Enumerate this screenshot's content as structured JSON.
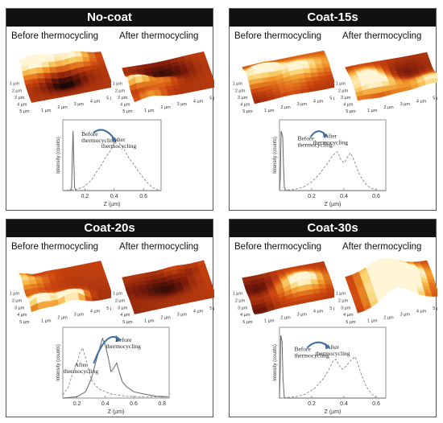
{
  "panels": [
    {
      "title": "No-coat",
      "before_label": "Before thermocycling",
      "after_label": "After thermocycling"
    },
    {
      "title": "Coat-15s",
      "before_label": "Before thermocycling",
      "after_label": "After thermocycling"
    },
    {
      "title": "Coat-20s",
      "before_label": "Before thermocycling",
      "after_label": "After thermocycling"
    },
    {
      "title": "Coat-30s",
      "before_label": "Before thermocycling",
      "after_label": "After thermocycling"
    }
  ],
  "surface_axis_labels": [
    "1 µm",
    "2 µm",
    "3 µm",
    "4 µm",
    "5 µm"
  ],
  "colors": {
    "before_line": "#666666",
    "after_line": "#888888",
    "arrow": "#3d6fa5",
    "header_bg": "#111111"
  },
  "chart_data": [
    {
      "type": "line",
      "panel": "No-coat",
      "xlabel": "Z (µm)",
      "ylabel": "Intensity (counts)",
      "xlim": [
        0.05,
        0.72
      ],
      "ylim": [
        0,
        1
      ],
      "xticks": [
        0.2,
        0.4,
        0.6
      ],
      "annotations": [
        "Before thermocycling",
        "After thermocycling"
      ],
      "series": [
        {
          "name": "Before thermocycling",
          "style": "solid",
          "x": [
            0.05,
            0.1,
            0.11,
            0.115,
            0.12,
            0.125,
            0.13,
            0.14,
            0.2,
            0.72
          ],
          "y": [
            0,
            0,
            0.05,
            0.55,
            0.95,
            0.45,
            0.05,
            0,
            0,
            0
          ]
        },
        {
          "name": "After thermocycling",
          "style": "dashed",
          "x": [
            0.05,
            0.15,
            0.2,
            0.25,
            0.28,
            0.3,
            0.33,
            0.35,
            0.38,
            0.4,
            0.42,
            0.44,
            0.46,
            0.48,
            0.5,
            0.52,
            0.55,
            0.58,
            0.62,
            0.66,
            0.7
          ],
          "y": [
            0,
            0.02,
            0.07,
            0.18,
            0.3,
            0.36,
            0.48,
            0.56,
            0.65,
            0.76,
            0.82,
            0.74,
            0.7,
            0.6,
            0.52,
            0.46,
            0.36,
            0.26,
            0.14,
            0.05,
            0.01
          ]
        }
      ]
    },
    {
      "type": "line",
      "panel": "Coat-15s",
      "xlabel": "Z (µm)",
      "ylabel": "Intensity (counts)",
      "xlim": [
        0.0,
        0.66
      ],
      "ylim": [
        0,
        1
      ],
      "xticks": [
        0.2,
        0.4,
        0.6
      ],
      "annotations": [
        "Before thermocycling",
        "After thermocycling"
      ],
      "series": [
        {
          "name": "Before thermocycling",
          "style": "solid",
          "x": [
            0.0,
            0.005,
            0.01,
            0.015,
            0.02,
            0.025,
            0.03,
            0.04,
            0.66
          ],
          "y": [
            0,
            0.2,
            0.95,
            0.9,
            0.85,
            0.4,
            0.05,
            0,
            0
          ]
        },
        {
          "name": "After thermocycling",
          "style": "dashed",
          "x": [
            0.0,
            0.1,
            0.15,
            0.2,
            0.24,
            0.27,
            0.3,
            0.33,
            0.36,
            0.38,
            0.4,
            0.42,
            0.44,
            0.46,
            0.48,
            0.5,
            0.53,
            0.56,
            0.6
          ],
          "y": [
            0,
            0.02,
            0.06,
            0.14,
            0.24,
            0.34,
            0.44,
            0.56,
            0.62,
            0.5,
            0.44,
            0.52,
            0.6,
            0.5,
            0.36,
            0.24,
            0.12,
            0.05,
            0.01
          ]
        }
      ]
    },
    {
      "type": "line",
      "panel": "Coat-20s",
      "xlabel": "Z (µm)",
      "ylabel": "Intensity (counts)",
      "xlim": [
        0.1,
        0.85
      ],
      "ylim": [
        0,
        1
      ],
      "xticks": [
        0.2,
        0.4,
        0.6,
        0.8
      ],
      "annotations": [
        "After thermocycling",
        "Before thermocycling"
      ],
      "series": [
        {
          "name": "After thermocycling",
          "style": "dashed",
          "x": [
            0.1,
            0.14,
            0.17,
            0.2,
            0.22,
            0.24,
            0.26,
            0.28,
            0.3,
            0.33,
            0.36,
            0.4,
            0.45,
            0.55,
            0.65,
            0.75,
            0.85
          ],
          "y": [
            0.05,
            0.18,
            0.4,
            0.55,
            0.72,
            0.8,
            0.64,
            0.46,
            0.3,
            0.2,
            0.14,
            0.1,
            0.06,
            0.03,
            0.02,
            0.02,
            0.02
          ]
        },
        {
          "name": "Before thermocycling",
          "style": "solid",
          "x": [
            0.1,
            0.2,
            0.26,
            0.3,
            0.33,
            0.36,
            0.38,
            0.4,
            0.42,
            0.44,
            0.46,
            0.48,
            0.5,
            0.52,
            0.55,
            0.6,
            0.68,
            0.76,
            0.84
          ],
          "y": [
            0,
            0.02,
            0.1,
            0.3,
            0.55,
            0.8,
            0.95,
            0.84,
            0.65,
            0.42,
            0.48,
            0.56,
            0.4,
            0.26,
            0.18,
            0.1,
            0.06,
            0.03,
            0.02
          ]
        }
      ]
    },
    {
      "type": "line",
      "panel": "Coat-30s",
      "xlabel": "Z (µm)",
      "ylabel": "Intensity (counts)",
      "xlim": [
        0.0,
        0.66
      ],
      "ylim": [
        0,
        1
      ],
      "xticks": [
        0.2,
        0.4,
        0.6
      ],
      "annotations": [
        "Before thermocycling",
        "After thermocycling"
      ],
      "series": [
        {
          "name": "Before thermocycling",
          "style": "solid",
          "x": [
            0.0,
            0.004,
            0.008,
            0.012,
            0.016,
            0.022,
            0.03,
            0.66
          ],
          "y": [
            0,
            0.4,
            1.0,
            0.95,
            0.9,
            0.3,
            0,
            0
          ]
        },
        {
          "name": "After thermocycling",
          "style": "dashed",
          "x": [
            0.0,
            0.1,
            0.16,
            0.22,
            0.27,
            0.3,
            0.33,
            0.35,
            0.37,
            0.39,
            0.41,
            0.43,
            0.45,
            0.47,
            0.49,
            0.51,
            0.54,
            0.57,
            0.6
          ],
          "y": [
            0,
            0.02,
            0.06,
            0.16,
            0.3,
            0.42,
            0.58,
            0.62,
            0.52,
            0.46,
            0.5,
            0.56,
            0.62,
            0.66,
            0.52,
            0.36,
            0.18,
            0.07,
            0.01
          ]
        }
      ]
    }
  ]
}
